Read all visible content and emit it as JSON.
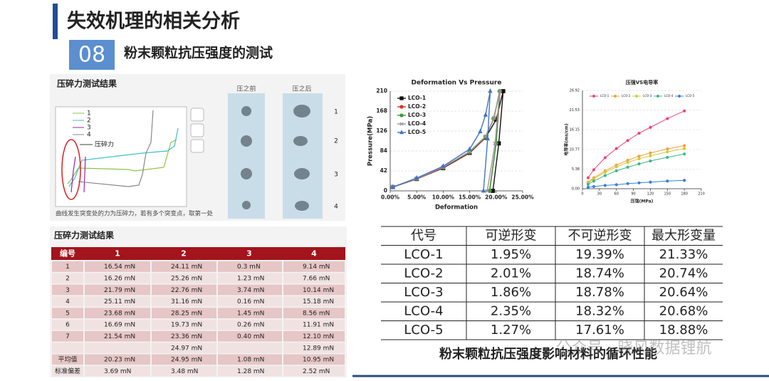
{
  "header": {
    "title": "失效机理的相关分析",
    "section_number": "08",
    "subtitle": "粉末颗粒抗压强度的测试"
  },
  "crush_panel": {
    "title": "压碎力测试结果",
    "before_label": "压之前",
    "after_label": "压之后",
    "sample_numbers": [
      "1",
      "2",
      "3",
      "4"
    ],
    "legend": [
      "1",
      "2",
      "3",
      "4"
    ],
    "annotation": "压碎力",
    "caption": "曲线发生突变处的力为压碎力，若有多个突变点，取第一处"
  },
  "crush_table": {
    "title": "压碎力测试结果",
    "columns": [
      "编号",
      "1",
      "2",
      "3",
      "4"
    ],
    "rows": [
      [
        "1",
        "16.54 mN",
        "24.11 mN",
        "0.3 mN",
        "9.14 mN"
      ],
      [
        "2",
        "16.26 mN",
        "25.26 mN",
        "1.23 mN",
        "7.66 mN"
      ],
      [
        "3",
        "21.79 mN",
        "22.76 mN",
        "3.74 mN",
        "10.14 mN"
      ],
      [
        "4",
        "25.11 mN",
        "31.16 mN",
        "0.16 mN",
        "15.18 mN"
      ],
      [
        "5",
        "23.68 mN",
        "28.25 mN",
        "1.45 mN",
        "8.56 mN"
      ],
      [
        "6",
        "16.69 mN",
        "19.73 mN",
        "0.26 mN",
        "11.91 mN"
      ],
      [
        "7",
        "21.54 mN",
        "23.36 mN",
        "0.40 mN",
        "12.10 mN"
      ],
      [
        null,
        null,
        "24.97 mN",
        null,
        "12.89 mN"
      ],
      [
        "平均值",
        "20.23 mN",
        "24.95 mN",
        "1.08 mN",
        "10.95 mN"
      ],
      [
        "标准偏差",
        "3.69 mN",
        "3.48 mN",
        "1.28 mN",
        "2.52 mN"
      ]
    ]
  },
  "chart_data": [
    {
      "type": "line",
      "title": "Deformation Vs Pressure",
      "x_label": "Deformation",
      "y_label": "Pressure(MPa)",
      "xlim": [
        0,
        25
      ],
      "xticks": [
        {
          "value": 0,
          "label": "0.00%"
        },
        {
          "value": 5,
          "label": "5.00%"
        },
        {
          "value": 10,
          "label": "10.00%"
        },
        {
          "value": 15,
          "label": "15.00%"
        },
        {
          "value": 20,
          "label": "20.00%"
        },
        {
          "value": 25,
          "label": "25.00%"
        }
      ],
      "ylim": [
        0,
        210
      ],
      "yticks": [
        0,
        42,
        84,
        126,
        168,
        210
      ],
      "grid": true,
      "legend": "upper left",
      "series": [
        {
          "name": "LCO-1",
          "color": "#111111",
          "marker": "square",
          "x": [
            0.5,
            5,
            10,
            15,
            18,
            20,
            21.33,
            20.5,
            19.39
          ],
          "values": [
            8,
            25,
            48,
            80,
            112,
            150,
            210,
            100,
            0
          ]
        },
        {
          "name": "LCO-2",
          "color": "#e03020",
          "marker": "circle",
          "x": [
            0.5,
            5,
            10,
            15,
            18,
            19.5,
            20.74,
            20,
            18.74
          ],
          "values": [
            8,
            25,
            49,
            81,
            113,
            152,
            210,
            100,
            0
          ]
        },
        {
          "name": "LCO-3",
          "color": "#3a9a3a",
          "marker": "circle",
          "x": [
            0.5,
            5,
            10,
            15,
            18,
            19.6,
            20.64,
            20,
            18.78
          ],
          "values": [
            8,
            26,
            50,
            82,
            114,
            153,
            210,
            100,
            0
          ]
        },
        {
          "name": "LCO-4",
          "color": "#999999",
          "marker": "cross",
          "x": [
            0.5,
            5,
            10,
            15,
            18,
            19.6,
            20.68,
            19.8,
            18.32
          ],
          "values": [
            8,
            26,
            50,
            83,
            115,
            154,
            210,
            100,
            0
          ]
        },
        {
          "name": "LCO-5",
          "color": "#4472c4",
          "marker": "triangle",
          "x": [
            0.5,
            5,
            10,
            15,
            17,
            18,
            18.88,
            18.4,
            17.61
          ],
          "values": [
            8,
            27,
            52,
            88,
            125,
            160,
            210,
            110,
            0
          ]
        }
      ]
    },
    {
      "type": "line",
      "title": "压强VS电导率",
      "x_label": "压强(MPa)",
      "y_label": "电导率(ms/cm)",
      "xlim": [
        0,
        210
      ],
      "xticks": [
        0,
        30,
        60,
        90,
        120,
        150,
        180,
        210
      ],
      "ylim": [
        0,
        26.92
      ],
      "yticks": [
        {
          "value": 0,
          "label": "0.00"
        },
        5.38,
        10.77,
        16.15,
        21.53,
        26.92
      ],
      "grid": true,
      "legend": "top",
      "x": [
        10,
        20,
        40,
        60,
        80,
        100,
        120,
        150,
        180
      ],
      "series": [
        {
          "name": "LCO-1",
          "color": "#e8457a",
          "marker": "circle",
          "values": [
            3,
            5.2,
            8.5,
            11,
            13.2,
            15.2,
            16.8,
            19.2,
            21.3
          ]
        },
        {
          "name": "LCO-2",
          "color": "#f4a23a",
          "marker": "circle",
          "values": [
            1.8,
            3.0,
            4.9,
            6.5,
            7.8,
            8.9,
            9.8,
            10.9,
            11.8
          ]
        },
        {
          "name": "LCO-3",
          "color": "#d4c83a",
          "marker": "circle",
          "values": [
            1.6,
            2.7,
            4.5,
            6.0,
            7.2,
            8.2,
            9.0,
            10.1,
            11.0
          ]
        },
        {
          "name": "LCO-4",
          "color": "#3cb58a",
          "marker": "circle",
          "values": [
            1.2,
            2.1,
            3.6,
            4.9,
            5.9,
            6.8,
            7.6,
            8.6,
            9.5
          ]
        },
        {
          "name": "LCO-5",
          "color": "#3a7fd6",
          "marker": "circle",
          "values": [
            0.4,
            0.6,
            0.9,
            1.1,
            1.4,
            1.6,
            1.8,
            2.1,
            2.3
          ]
        }
      ]
    }
  ],
  "deformation_table": {
    "columns": [
      "代号",
      "可逆形变",
      "不可逆形变",
      "最大形变量"
    ],
    "rows": [
      [
        "LCO-1",
        "1.95%",
        "19.39%",
        "21.33%"
      ],
      [
        "LCO-2",
        "2.01%",
        "18.74%",
        "20.74%"
      ],
      [
        "LCO-3",
        "1.86%",
        "18.78%",
        "20.64%"
      ],
      [
        "LCO-4",
        "2.35%",
        "18.32%",
        "20.68%"
      ],
      [
        "LCO-5",
        "1.27%",
        "17.61%",
        "18.88%"
      ]
    ]
  },
  "caption": "粉末颗粒抗压强度影响材料的循环性能",
  "watermark": "公众号 · 晓风数据锂航"
}
